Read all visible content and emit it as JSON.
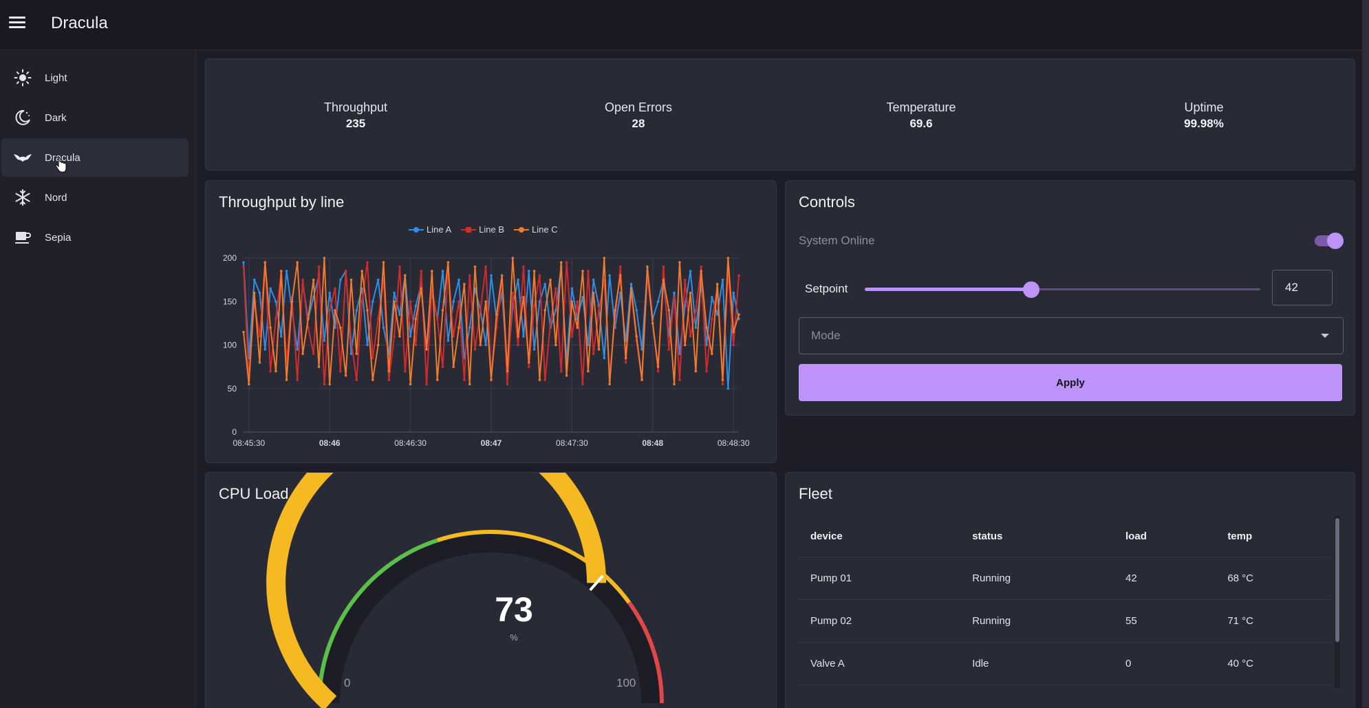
{
  "app": {
    "title": "Dracula"
  },
  "sidebar": {
    "items": [
      {
        "label": "Light",
        "icon": "sun-icon"
      },
      {
        "label": "Dark",
        "icon": "moon-icon"
      },
      {
        "label": "Dracula",
        "icon": "bat-icon",
        "active": true
      },
      {
        "label": "Nord",
        "icon": "snowflake-icon"
      },
      {
        "label": "Sepia",
        "icon": "coffee-icon"
      }
    ]
  },
  "kpis": [
    {
      "label": "Throughput",
      "value": "235"
    },
    {
      "label": "Open Errors",
      "value": "28"
    },
    {
      "label": "Temperature",
      "value": "69.6"
    },
    {
      "label": "Uptime",
      "value": "99.98%"
    }
  ],
  "throughput_card": {
    "title": "Throughput by line"
  },
  "controls": {
    "title": "Controls",
    "toggle_label": "System Online",
    "toggle_on": true,
    "setpoint_label": "Setpoint",
    "setpoint_value": "42",
    "setpoint_fraction": 0.42,
    "mode_placeholder": "Mode",
    "apply_label": "Apply"
  },
  "cpu": {
    "title": "CPU Load",
    "value": "73",
    "unit": "%",
    "min_label": "0",
    "max_label": "100"
  },
  "fleet": {
    "title": "Fleet",
    "headers": [
      "device",
      "status",
      "load",
      "temp"
    ],
    "rows": [
      [
        "Pump 01",
        "Running",
        "42",
        "68 °C"
      ],
      [
        "Pump 02",
        "Running",
        "55",
        "71 °C"
      ],
      [
        "Valve A",
        "Idle",
        "0",
        "40 °C"
      ]
    ]
  },
  "colors": {
    "accent": "#bd93f9",
    "line_a": "#2f8ee6",
    "line_b": "#d42a2a",
    "line_c": "#f27a2c",
    "gauge_green": "#5cbf4a",
    "gauge_yellow": "#f5b922",
    "gauge_red": "#e04848"
  },
  "chart_data": [
    {
      "type": "line",
      "title": "Throughput by line",
      "ylim": [
        0,
        200
      ],
      "yticks": [
        "0",
        "50",
        "100",
        "150",
        "200"
      ],
      "xlim": [
        "08:45:28",
        "08:48:32"
      ],
      "xticks": [
        "08:45:30",
        "08:46",
        "08:46:30",
        "08:47",
        "08:47:30",
        "08:48",
        "08:48:30"
      ],
      "legend": "top-center",
      "grid": true,
      "x": [
        "08:45:28",
        "08:45:30",
        "08:45:32",
        "08:45:34",
        "08:45:36",
        "08:45:38",
        "08:45:40",
        "08:45:42",
        "08:45:44",
        "08:45:46",
        "08:45:48",
        "08:45:50",
        "08:45:52",
        "08:45:54",
        "08:45:56",
        "08:45:58",
        "08:46:00",
        "08:46:02",
        "08:46:04",
        "08:46:06",
        "08:46:08",
        "08:46:10",
        "08:46:12",
        "08:46:14",
        "08:46:16",
        "08:46:18",
        "08:46:20",
        "08:46:22",
        "08:46:24",
        "08:46:26",
        "08:46:28",
        "08:46:30",
        "08:46:32",
        "08:46:34",
        "08:46:36",
        "08:46:38",
        "08:46:40",
        "08:46:42",
        "08:46:44",
        "08:46:46",
        "08:46:48",
        "08:46:50",
        "08:46:52",
        "08:46:54",
        "08:46:56",
        "08:46:58",
        "08:47:00",
        "08:47:02",
        "08:47:04",
        "08:47:06",
        "08:47:08",
        "08:47:10",
        "08:47:12",
        "08:47:14",
        "08:47:16",
        "08:47:18",
        "08:47:20",
        "08:47:22",
        "08:47:24",
        "08:47:26",
        "08:47:28",
        "08:47:30",
        "08:47:32",
        "08:47:34",
        "08:47:36",
        "08:47:38",
        "08:47:40",
        "08:47:42",
        "08:47:44",
        "08:47:46",
        "08:47:48",
        "08:47:50",
        "08:47:52",
        "08:47:54",
        "08:47:56",
        "08:47:58",
        "08:48:00",
        "08:48:02",
        "08:48:04",
        "08:48:06",
        "08:48:08",
        "08:48:10",
        "08:48:12",
        "08:48:14",
        "08:48:16",
        "08:48:18",
        "08:48:20",
        "08:48:22",
        "08:48:24",
        "08:48:26",
        "08:48:28",
        "08:48:30",
        "08:48:32"
      ],
      "series": [
        {
          "name": "Line A",
          "color": "#2f8ee6",
          "values": [
            195,
            85,
            175,
            160,
            95,
            165,
            150,
            110,
            185,
            140,
            95,
            170,
            130,
            155,
            180,
            105,
            160,
            120,
            175,
            185,
            90,
            140,
            165,
            100,
            150,
            175,
            120,
            90,
            160,
            135,
            180,
            110,
            145,
            170,
            95,
            160,
            130,
            185,
            105,
            150,
            175,
            85,
            120,
            165,
            140,
            100,
            180,
            130,
            160,
            70,
            145,
            175,
            110,
            185,
            95,
            150,
            170,
            120,
            140,
            190,
            80,
            165,
            130,
            155,
            100,
            175,
            145,
            85,
            180,
            120,
            160,
            105,
            170,
            140,
            95,
            185,
            130,
            150,
            175,
            110,
            160,
            90,
            145,
            185,
            120,
            170,
            100,
            155,
            135,
            175,
            50,
            160,
            130
          ]
        },
        {
          "name": "Line B",
          "color": "#d42a2a",
          "values": [
            190,
            60,
            150,
            110,
            195,
            70,
            130,
            185,
            80,
            155,
            60,
            175,
            120,
            90,
            190,
            55,
            140,
            165,
            70,
            185,
            105,
            60,
            150,
            195,
            85,
            130,
            175,
            60,
            110,
            190,
            70,
            150,
            100,
            185,
            55,
            165,
            130,
            75,
            190,
            110,
            150,
            60,
            180,
            95,
            140,
            190,
            65,
            120,
            175,
            55,
            160,
            100,
            190,
            75,
            145,
            180,
            60,
            125,
            165,
            70,
            195,
            110,
            150,
            55,
            185,
            90,
            140,
            175,
            65,
            130,
            190,
            80,
            160,
            105,
            60,
            180,
            125,
            70,
            190,
            95,
            155,
            60,
            175,
            110,
            140,
            190,
            70,
            130,
            165,
            55,
            185,
            100,
            180
          ]
        },
        {
          "name": "Line C",
          "color": "#f27a2c",
          "values": [
            115,
            55,
            160,
            80,
            195,
            120,
            70,
            185,
            60,
            150,
            195,
            90,
            130,
            175,
            75,
            200,
            55,
            140,
            120,
            65,
            175,
            90,
            185,
            140,
            60,
            100,
            195,
            70,
            150,
            110,
            180,
            55,
            130,
            165,
            95,
            185,
            60,
            140,
            195,
            75,
            120,
            170,
            55,
            190,
            100,
            150,
            60,
            135,
            180,
            70,
            200,
            110,
            155,
            80,
            185,
            60,
            140,
            175,
            100,
            195,
            65,
            150,
            120,
            185,
            70,
            160,
            95,
            200,
            55,
            140,
            180,
            85,
            165,
            110,
            60,
            190,
            125,
            75,
            175,
            140,
            55,
            195,
            100,
            160,
            70,
            185,
            120,
            90,
            170,
            60,
            200,
            115,
            135
          ]
        }
      ]
    },
    {
      "type": "gauge",
      "title": "CPU Load",
      "value": 73,
      "min": 0,
      "max": 100,
      "unit": "%",
      "bands": [
        {
          "from": 0,
          "to": 40,
          "color": "#5cbf4a"
        },
        {
          "from": 40,
          "to": 80,
          "color": "#f5b922"
        },
        {
          "from": 80,
          "to": 100,
          "color": "#e04848"
        }
      ]
    }
  ]
}
